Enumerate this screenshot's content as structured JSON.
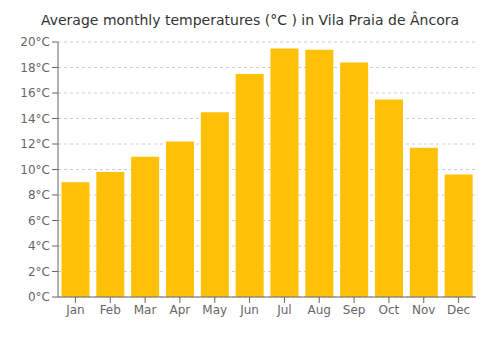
{
  "chart_data": {
    "type": "bar",
    "title": "Average monthly temperatures (°C ) in Vila Praia de Âncora",
    "categories": [
      "Jan",
      "Feb",
      "Mar",
      "Apr",
      "May",
      "Jun",
      "Jul",
      "Aug",
      "Sep",
      "Oct",
      "Nov",
      "Dec"
    ],
    "values": [
      9.0,
      9.8,
      11.0,
      12.2,
      14.5,
      17.5,
      19.5,
      19.4,
      18.4,
      15.5,
      11.7,
      9.6
    ],
    "color": "#FFC107",
    "ylim": [
      0,
      20
    ],
    "yticks": [
      {
        "value": 0,
        "label": "0°C"
      },
      {
        "value": 2,
        "label": "2°C"
      },
      {
        "value": 4,
        "label": "4°C"
      },
      {
        "value": 6,
        "label": "6°C"
      },
      {
        "value": 8,
        "label": "8°C"
      },
      {
        "value": 10,
        "label": "10°C"
      },
      {
        "value": 12,
        "label": "12°C"
      },
      {
        "value": 14,
        "label": "14°C"
      },
      {
        "value": 16,
        "label": "16°C"
      },
      {
        "value": 18,
        "label": "18°C"
      },
      {
        "value": 20,
        "label": "20°C"
      }
    ],
    "grid": true
  }
}
